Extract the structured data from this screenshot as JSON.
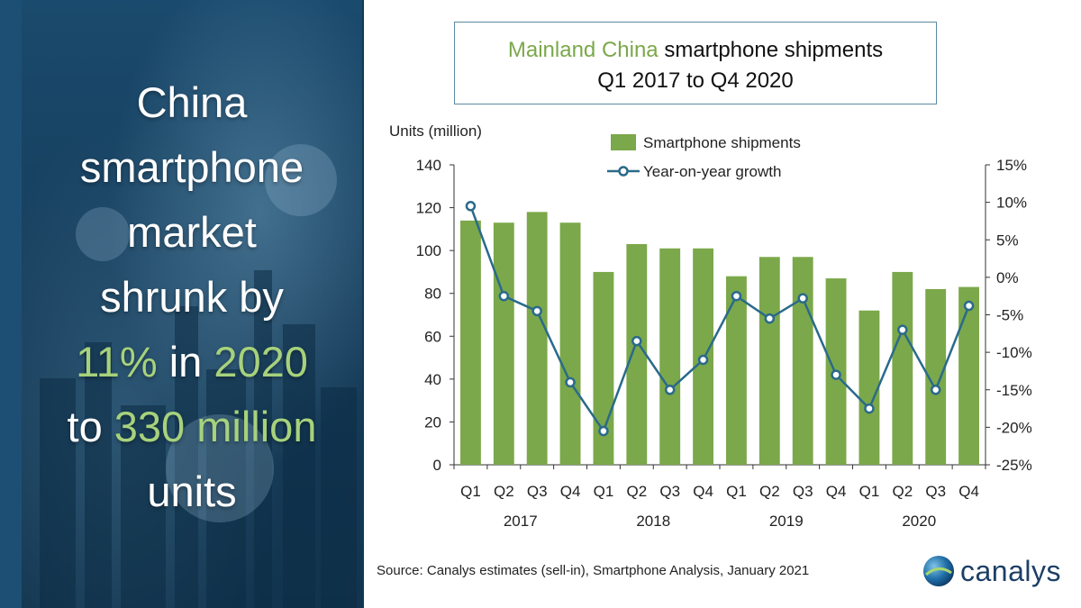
{
  "headline": {
    "line1": "China",
    "line2": "smartphone",
    "line3": "market",
    "line4": "shrunk by",
    "line5_pct": "11%",
    "line5_mid": " in ",
    "line5_year": "2020",
    "line6_to": "to ",
    "line6_units": "330 million",
    "line7": "units"
  },
  "chart_title": {
    "green_part": "Mainland China",
    "rest_part": " smartphone shipments",
    "line2": "Q1 2017 to Q4 2020"
  },
  "source": "Source: Canalys estimates (sell-in), Smartphone Analysis, January 2021",
  "logo_text": "canalys",
  "colors": {
    "bar": "#7ba84a",
    "line": "#2a6a8a",
    "highlight": "#a7d27c"
  },
  "chart_data": {
    "type": "bar",
    "ylabel": "Units (million)",
    "categories": [
      "Q1",
      "Q2",
      "Q3",
      "Q4",
      "Q1",
      "Q2",
      "Q3",
      "Q4",
      "Q1",
      "Q2",
      "Q3",
      "Q4",
      "Q1",
      "Q2",
      "Q3",
      "Q4"
    ],
    "years": [
      "2017",
      "2018",
      "2019",
      "2020"
    ],
    "ylim": [
      0,
      140
    ],
    "y_ticks": [
      0,
      20,
      40,
      60,
      80,
      100,
      120,
      140
    ],
    "y_tick_labels": [
      "0",
      "20",
      "40",
      "60",
      "80",
      "100",
      "120",
      "140"
    ],
    "y2lim": [
      -25,
      15
    ],
    "y2_ticks": [
      15,
      10,
      5,
      0,
      -5,
      -10,
      -15,
      -20,
      -25
    ],
    "y2_tick_labels": [
      "15%",
      "10%",
      "5%",
      "0%",
      "-5%",
      "-10%",
      "-15%",
      "-20%",
      "-25%"
    ],
    "legend": [
      "Smartphone shipments",
      "Year-on-year growth"
    ],
    "legend_position": "top-right",
    "series": [
      {
        "name": "Smartphone shipments",
        "kind": "bar",
        "axis": "left",
        "values": [
          114,
          113,
          118,
          113,
          90,
          103,
          101,
          101,
          88,
          97,
          97,
          87,
          72,
          90,
          82,
          83
        ]
      },
      {
        "name": "Year-on-year growth",
        "kind": "line",
        "axis": "right",
        "values": [
          9.5,
          -2.5,
          -4.5,
          -14,
          -20.5,
          -8.5,
          -15,
          -11,
          -2.5,
          -5.5,
          -2.8,
          -13,
          -17.5,
          -7,
          -15,
          -3.8
        ]
      }
    ]
  }
}
